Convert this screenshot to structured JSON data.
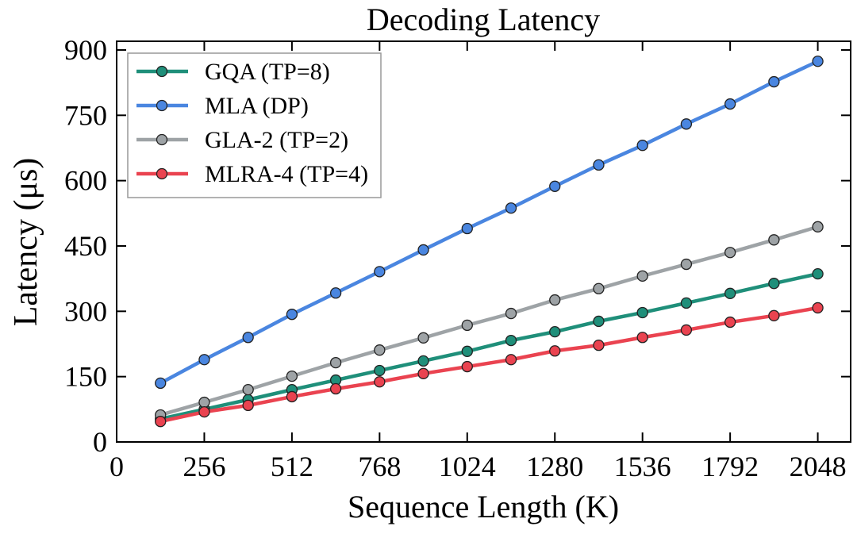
{
  "chart_data": {
    "type": "line",
    "title": "Decoding Latency",
    "xlabel": "Sequence Length (K)",
    "ylabel": "Latency (μs)",
    "xlim": [
      0,
      2144
    ],
    "ylim": [
      0,
      920
    ],
    "xticks": [
      0,
      256,
      512,
      768,
      1024,
      1280,
      1536,
      1792,
      2048
    ],
    "yticks": [
      0,
      150,
      300,
      450,
      600,
      750,
      900
    ],
    "grid": false,
    "legend_position": "top-left",
    "x": [
      128,
      256,
      384,
      512,
      640,
      768,
      896,
      1024,
      1152,
      1280,
      1408,
      1536,
      1664,
      1792,
      1920,
      2048
    ],
    "series": [
      {
        "name": "GQA (TP=8)",
        "color": "#1f8f7a",
        "values": [
          53,
          75,
          97,
          120,
          142,
          164,
          186,
          208,
          233,
          253,
          277,
          297,
          319,
          341,
          364,
          386
        ]
      },
      {
        "name": "MLA (DP)",
        "color": "#4a86e0",
        "values": [
          135,
          189,
          240,
          293,
          342,
          391,
          441,
          490,
          537,
          587,
          636,
          681,
          730,
          776,
          827,
          874
        ]
      },
      {
        "name": "GLA-2 (TP=2)",
        "color": "#9ea3a6",
        "values": [
          62,
          91,
          120,
          151,
          182,
          211,
          239,
          268,
          295,
          326,
          352,
          381,
          408,
          435,
          464,
          494
        ]
      },
      {
        "name": "MLRA-4 (TP=4)",
        "color": "#ea4350",
        "values": [
          47,
          69,
          84,
          104,
          122,
          138,
          157,
          173,
          189,
          209,
          222,
          240,
          257,
          275,
          290,
          308
        ]
      }
    ]
  }
}
